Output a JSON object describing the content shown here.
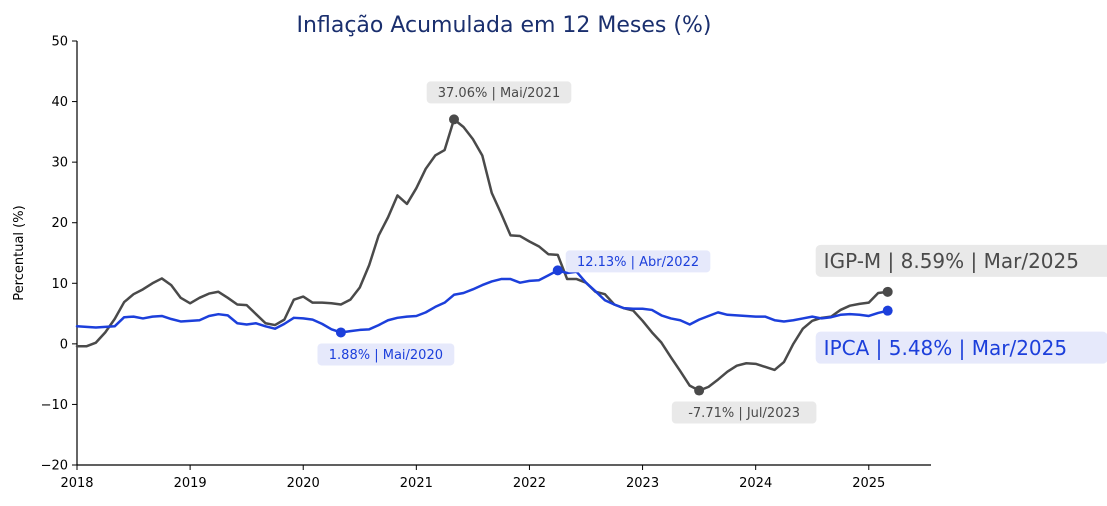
{
  "chart_data": {
    "type": "line",
    "title": "Inflação Acumulada em 12 Meses (%)",
    "xlabel": "",
    "ylabel": "Percentual (%)",
    "xlim": [
      2018.0,
      2025.55
    ],
    "ylim": [
      -20,
      50
    ],
    "x_ticks": [
      2018,
      2019,
      2020,
      2021,
      2022,
      2023,
      2024,
      2025
    ],
    "x_tick_labels": [
      "2018",
      "2019",
      "2020",
      "2021",
      "2022",
      "2023",
      "2024",
      "2025"
    ],
    "y_ticks": [
      -20,
      -10,
      0,
      10,
      20,
      30,
      40,
      50
    ],
    "y_tick_labels": [
      "−20",
      "−10",
      "0",
      "10",
      "20",
      "30",
      "40",
      "50"
    ],
    "grid": false,
    "series": [
      {
        "name": "IGP-M",
        "color": "#4a4a4a",
        "x": [
          2018.0,
          2018.083,
          2018.167,
          2018.25,
          2018.333,
          2018.417,
          2018.5,
          2018.583,
          2018.667,
          2018.75,
          2018.833,
          2018.917,
          2019.0,
          2019.083,
          2019.167,
          2019.25,
          2019.333,
          2019.417,
          2019.5,
          2019.583,
          2019.667,
          2019.75,
          2019.833,
          2019.917,
          2020.0,
          2020.083,
          2020.167,
          2020.25,
          2020.333,
          2020.417,
          2020.5,
          2020.583,
          2020.667,
          2020.75,
          2020.833,
          2020.917,
          2021.0,
          2021.083,
          2021.167,
          2021.25,
          2021.333,
          2021.417,
          2021.5,
          2021.583,
          2021.667,
          2021.75,
          2021.833,
          2021.917,
          2022.0,
          2022.083,
          2022.167,
          2022.25,
          2022.333,
          2022.417,
          2022.5,
          2022.583,
          2022.667,
          2022.75,
          2022.833,
          2022.917,
          2023.0,
          2023.083,
          2023.167,
          2023.25,
          2023.333,
          2023.417,
          2023.5,
          2023.583,
          2023.667,
          2023.75,
          2023.833,
          2023.917,
          2024.0,
          2024.083,
          2024.167,
          2024.25,
          2024.333,
          2024.417,
          2024.5,
          2024.583,
          2024.667,
          2024.75,
          2024.833,
          2024.917,
          2025.0,
          2025.083,
          2025.167
        ],
        "values": [
          -0.4,
          -0.4,
          0.2,
          1.9,
          4.1,
          6.9,
          8.2,
          9.0,
          10.0,
          10.8,
          9.7,
          7.6,
          6.7,
          7.6,
          8.3,
          8.6,
          7.6,
          6.5,
          6.4,
          4.9,
          3.4,
          3.1,
          4.0,
          7.3,
          7.8,
          6.8,
          6.8,
          6.7,
          6.5,
          7.3,
          9.3,
          13.0,
          17.9,
          20.9,
          24.5,
          23.1,
          25.7,
          28.9,
          31.1,
          32.0,
          37.06,
          35.8,
          33.8,
          31.1,
          24.9,
          21.5,
          17.9,
          17.8,
          16.9,
          16.1,
          14.8,
          14.7,
          10.7,
          10.7,
          10.1,
          8.6,
          8.2,
          6.5,
          5.9,
          5.5,
          3.8,
          1.9,
          0.2,
          -2.2,
          -4.5,
          -6.9,
          -7.71,
          -7.1,
          -5.9,
          -4.6,
          -3.6,
          -3.2,
          -3.3,
          -3.8,
          -4.3,
          -3.0,
          0.0,
          2.5,
          3.8,
          4.3,
          4.5,
          5.6,
          6.3,
          6.6,
          6.8,
          8.4,
          8.59
        ]
      },
      {
        "name": "IPCA",
        "color": "#1c3fdb",
        "x": [
          2018.0,
          2018.083,
          2018.167,
          2018.25,
          2018.333,
          2018.417,
          2018.5,
          2018.583,
          2018.667,
          2018.75,
          2018.833,
          2018.917,
          2019.0,
          2019.083,
          2019.167,
          2019.25,
          2019.333,
          2019.417,
          2019.5,
          2019.583,
          2019.667,
          2019.75,
          2019.833,
          2019.917,
          2020.0,
          2020.083,
          2020.167,
          2020.25,
          2020.333,
          2020.417,
          2020.5,
          2020.583,
          2020.667,
          2020.75,
          2020.833,
          2020.917,
          2021.0,
          2021.083,
          2021.167,
          2021.25,
          2021.333,
          2021.417,
          2021.5,
          2021.583,
          2021.667,
          2021.75,
          2021.833,
          2021.917,
          2022.0,
          2022.083,
          2022.167,
          2022.25,
          2022.333,
          2022.417,
          2022.5,
          2022.583,
          2022.667,
          2022.75,
          2022.833,
          2022.917,
          2023.0,
          2023.083,
          2023.167,
          2023.25,
          2023.333,
          2023.417,
          2023.5,
          2023.583,
          2023.667,
          2023.75,
          2023.833,
          2023.917,
          2024.0,
          2024.083,
          2024.167,
          2024.25,
          2024.333,
          2024.417,
          2024.5,
          2024.583,
          2024.667,
          2024.75,
          2024.833,
          2024.917,
          2025.0,
          2025.083,
          2025.167
        ],
        "values": [
          2.9,
          2.8,
          2.7,
          2.8,
          2.9,
          4.4,
          4.5,
          4.2,
          4.5,
          4.6,
          4.1,
          3.7,
          3.8,
          3.9,
          4.6,
          4.9,
          4.7,
          3.4,
          3.2,
          3.4,
          2.9,
          2.5,
          3.3,
          4.3,
          4.2,
          4.0,
          3.3,
          2.4,
          1.88,
          2.1,
          2.3,
          2.4,
          3.1,
          3.9,
          4.3,
          4.5,
          4.6,
          5.2,
          6.1,
          6.8,
          8.1,
          8.4,
          9.0,
          9.7,
          10.3,
          10.7,
          10.7,
          10.1,
          10.4,
          10.5,
          11.3,
          12.13,
          11.7,
          11.9,
          10.1,
          8.7,
          7.2,
          6.5,
          5.9,
          5.8,
          5.8,
          5.6,
          4.7,
          4.2,
          3.9,
          3.2,
          4.0,
          4.6,
          5.2,
          4.8,
          4.7,
          4.6,
          4.5,
          4.5,
          3.9,
          3.7,
          3.9,
          4.2,
          4.5,
          4.2,
          4.4,
          4.8,
          4.9,
          4.8,
          4.6,
          5.1,
          5.48
        ]
      }
    ],
    "annotations": [
      {
        "series": "IGP-M",
        "x": 2021.333,
        "y": 37.06,
        "text": "37.06% | Mai/2021",
        "placement": "above",
        "text_color": "#4a4a4a",
        "box_color": "#e9e9e9"
      },
      {
        "series": "IGP-M",
        "x": 2023.5,
        "y": -7.71,
        "text": "-7.71% | Jul/2023",
        "placement": "below",
        "text_color": "#4a4a4a",
        "box_color": "#e9e9e9"
      },
      {
        "series": "IPCA",
        "x": 2020.333,
        "y": 1.88,
        "text": "1.88% | Mai/2020",
        "placement": "below",
        "text_color": "#1c3fdb",
        "box_color": "#e6e9fb"
      },
      {
        "series": "IPCA",
        "x": 2022.25,
        "y": 12.13,
        "text": "12.13% | Abr/2022",
        "placement": "right",
        "text_color": "#1c3fdb",
        "box_color": "#e6e9fb"
      }
    ],
    "end_labels": [
      {
        "series": "IGP-M",
        "x": 2025.167,
        "y": 8.59,
        "text": "IGP-M | 8.59% | Mar/2025",
        "placement": "above",
        "text_color": "#4a4a4a",
        "box_color": "#e9e9e9"
      },
      {
        "series": "IPCA",
        "x": 2025.167,
        "y": 5.48,
        "text": "IPCA | 5.48% | Mar/2025",
        "placement": "below",
        "text_color": "#1c3fdb",
        "box_color": "#e6e9fb"
      }
    ],
    "colors": {
      "title": "#1a2f6e",
      "axis": "#000000"
    }
  }
}
